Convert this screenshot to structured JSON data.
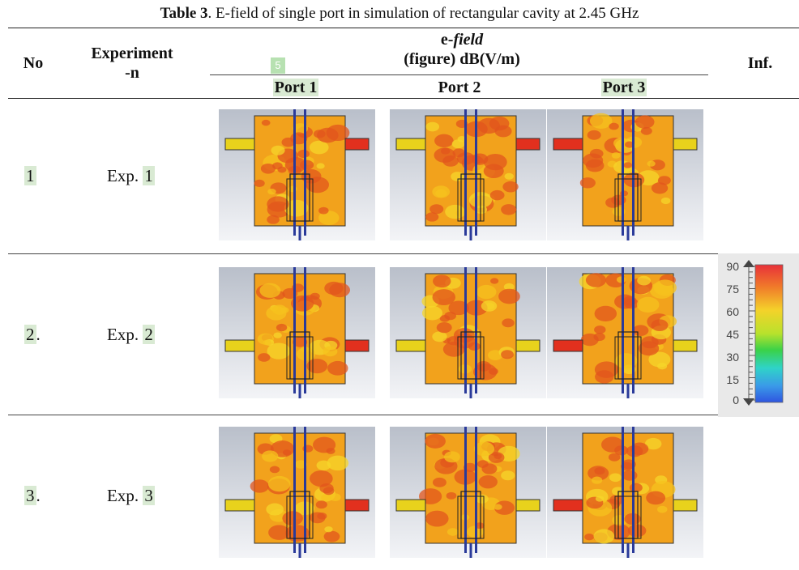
{
  "caption": {
    "label": "Table 3",
    "text": ". E-field of single port in simulation of rectangular cavity at 2.45 GHz"
  },
  "table": {
    "col_no": "No",
    "col_experiment_line1": "Experiment",
    "col_experiment_line2": "-n",
    "col_efield_prefix": "e-",
    "col_efield_italic": "field",
    "col_efield_unit": "(figure) dB(V/m)",
    "col_inf": "Inf.",
    "badge": "5",
    "ports": [
      "Port 1",
      "Port 2",
      "Port 3"
    ],
    "rows": [
      {
        "no": "1",
        "no_suffix": "",
        "exp_prefix": "Exp. ",
        "exp_num": "1",
        "hot_side": [
          "right",
          "right",
          "left"
        ]
      },
      {
        "no": "2",
        "no_suffix": ".",
        "exp_prefix": "Exp. ",
        "exp_num": "2",
        "hot_side": [
          "right",
          "none",
          "left"
        ]
      },
      {
        "no": "3",
        "no_suffix": ".",
        "exp_prefix": "Exp. ",
        "exp_num": "3",
        "hot_side": [
          "right",
          "none",
          "left"
        ]
      }
    ]
  },
  "colorbar": {
    "ticks": [
      "90",
      "75",
      "60",
      "45",
      "30",
      "15",
      "0"
    ],
    "colors": [
      "#e8313a",
      "#f07a2a",
      "#f4d22a",
      "#b8e22c",
      "#3ad248",
      "#2fd3c8",
      "#3a9ae8",
      "#2f55e0"
    ]
  }
}
